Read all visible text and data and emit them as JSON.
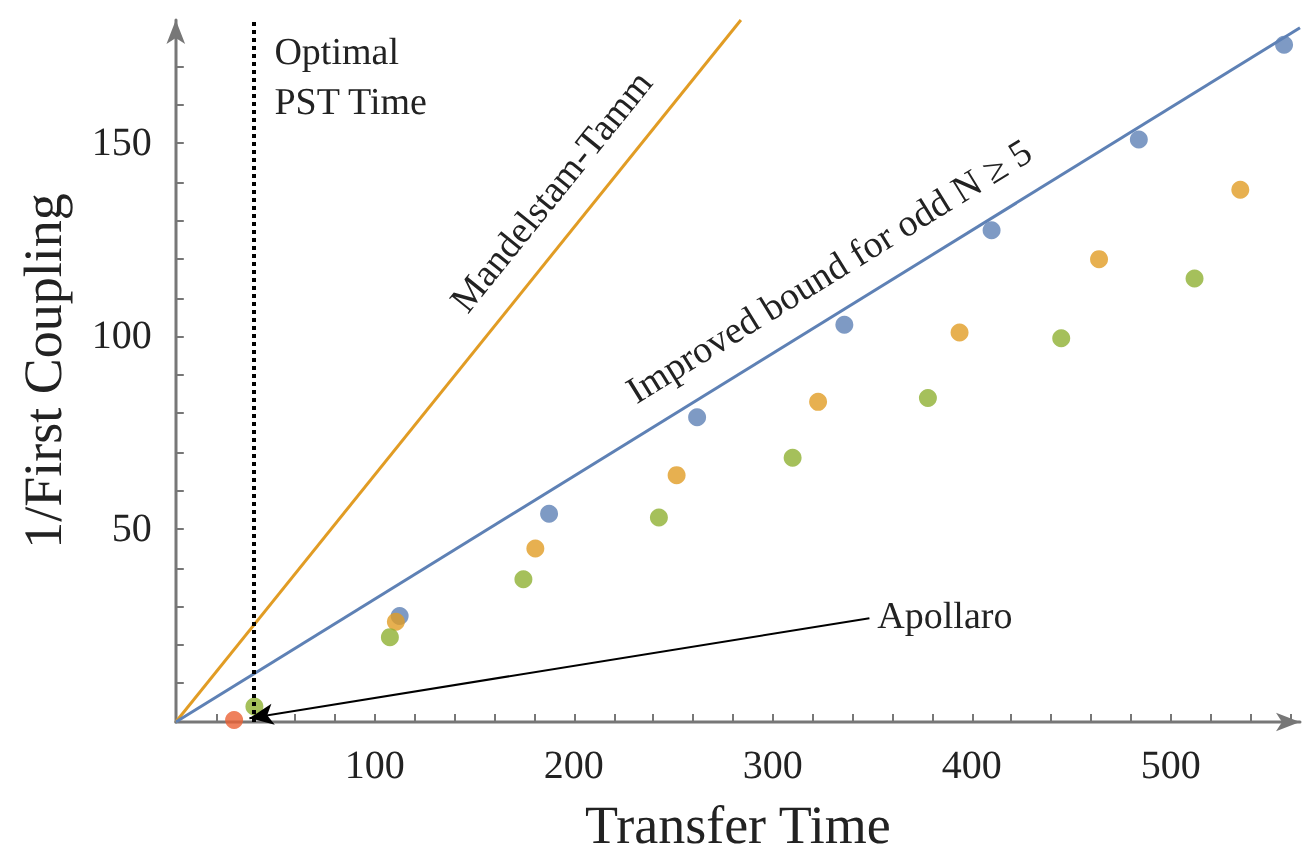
{
  "chart_data": {
    "type": "scatter",
    "xlabel": "Transfer Time",
    "ylabel": "1/First Coupling",
    "xlim": [
      0,
      565
    ],
    "ylim": [
      0,
      182
    ],
    "xticks": [
      {
        "value": 20,
        "label": null
      },
      {
        "value": 40,
        "label": null
      },
      {
        "value": 60,
        "label": null
      },
      {
        "value": 80,
        "label": null
      },
      100,
      {
        "value": 120,
        "label": null
      },
      {
        "value": 140,
        "label": null
      },
      {
        "value": 160,
        "label": null
      },
      {
        "value": 180,
        "label": null
      },
      200,
      {
        "value": 220,
        "label": null
      },
      {
        "value": 240,
        "label": null
      },
      {
        "value": 260,
        "label": null
      },
      {
        "value": 280,
        "label": null
      },
      300,
      {
        "value": 320,
        "label": null
      },
      {
        "value": 340,
        "label": null
      },
      {
        "value": 360,
        "label": null
      },
      {
        "value": 380,
        "label": null
      },
      400,
      {
        "value": 420,
        "label": null
      },
      {
        "value": 440,
        "label": null
      },
      {
        "value": 460,
        "label": null
      },
      {
        "value": 480,
        "label": null
      },
      500,
      {
        "value": 520,
        "label": null
      },
      {
        "value": 540,
        "label": null
      },
      {
        "value": 560,
        "label": null
      }
    ],
    "yticks": [
      {
        "value": 10,
        "label": null
      },
      {
        "value": 20,
        "label": null
      },
      {
        "value": 30,
        "label": null
      },
      {
        "value": 40,
        "label": null
      },
      50,
      {
        "value": 60,
        "label": null
      },
      {
        "value": 70,
        "label": null
      },
      {
        "value": 80,
        "label": null
      },
      {
        "value": 90,
        "label": null
      },
      100,
      {
        "value": 110,
        "label": null
      },
      {
        "value": 120,
        "label": null
      },
      {
        "value": 130,
        "label": null
      },
      {
        "value": 140,
        "label": null
      },
      150,
      {
        "value": 160,
        "label": null
      },
      {
        "value": 170,
        "label": null
      }
    ],
    "grid": false,
    "series": [
      {
        "type": "line",
        "name": "Mandelstam-Tamm",
        "color": "#e19c24",
        "marker": "none",
        "x": [
          0,
          284
        ],
        "values": [
          0,
          182
        ]
      },
      {
        "type": "line",
        "name": "Improved bound for odd N ≥ 5",
        "color": "#5e81b5",
        "marker": "none",
        "x": [
          0,
          565
        ],
        "values": [
          0,
          180
        ]
      },
      {
        "color": "#5e81b5",
        "marker": "circle",
        "x": [
          112.5,
          187.6,
          262,
          336,
          410,
          484,
          557
        ],
        "values": [
          27.5,
          54,
          79,
          103,
          127.5,
          151,
          175.6
        ]
      },
      {
        "color": "#e19c24",
        "marker": "circle",
        "x": [
          110.6,
          180.7,
          251.7,
          322.8,
          393.9,
          464,
          535
        ],
        "values": [
          26,
          45,
          64,
          83,
          101,
          120,
          138
        ]
      },
      {
        "color": "#8fb032",
        "marker": "circle",
        "x": [
          39.5,
          107.6,
          174.7,
          242.8,
          310,
          378,
          445,
          512
        ],
        "values": [
          4,
          22,
          37,
          53,
          68.5,
          84,
          99.5,
          115
        ]
      },
      {
        "color": "#eb6235",
        "marker": "circle",
        "x": [
          29.3
        ],
        "values": [
          0.5
        ]
      }
    ],
    "ref_lines": [
      {
        "axis": "x",
        "value": 39.5,
        "label": "Optimal\nPST Time",
        "color": "#000000",
        "line_style": "dotted"
      }
    ],
    "annotations": [
      {
        "text": "Apollaro",
        "x": 37,
        "y": 1
      }
    ]
  }
}
